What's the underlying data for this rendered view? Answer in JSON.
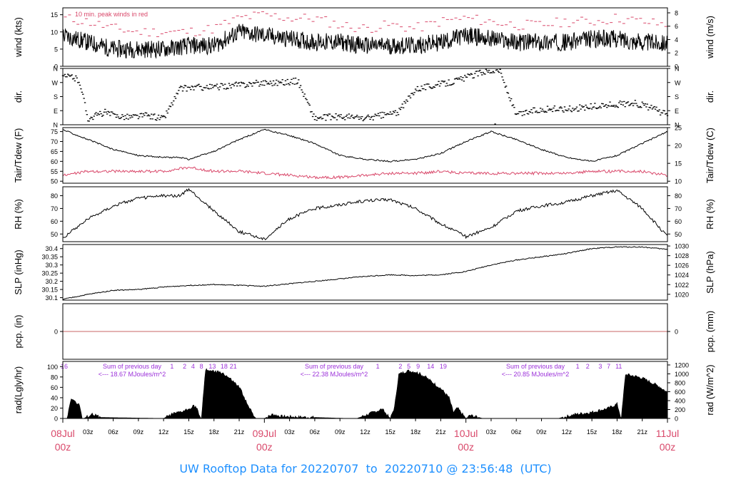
{
  "footer": {
    "prefix": "UW Rooftop Data for",
    "start": "20220707",
    "to": "to",
    "end": "20220710",
    "at": "@",
    "time": "23:56:48",
    "zone": "(UTC)"
  },
  "colors": {
    "black": "#000000",
    "red": "#d9486a",
    "purple": "#9b30d9",
    "blue": "#1e90ff",
    "date_red": "#d9486a",
    "zero_line": "#c86464"
  },
  "chart_data": {
    "type": "line",
    "x_axis": {
      "start_label": "08Jul 00z",
      "labels": [
        "08Jul",
        "03z",
        "06z",
        "09z",
        "12z",
        "15z",
        "18z",
        "21z",
        "09Jul",
        "03z",
        "06z",
        "09z",
        "12z",
        "15z",
        "18z",
        "21z",
        "10Jul",
        "03z",
        "06z",
        "09z",
        "12z",
        "15z",
        "18z",
        "21z",
        "11Jul"
      ],
      "sub_labels": [
        "00z",
        "00z",
        "00z",
        "00z"
      ],
      "day_labels": [
        "08Jul",
        "09Jul",
        "10Jul",
        "11Jul"
      ],
      "hour_ticks": [
        "03z",
        "06z",
        "09z",
        "12z",
        "15z",
        "18z",
        "21z"
      ],
      "range_hours": [
        0,
        72
      ]
    },
    "panels": [
      {
        "name": "wind",
        "ylabel_left": "wind (kts)",
        "ylabel_right": "wind (m/s)",
        "left_ticks": [
          0,
          5,
          10,
          15
        ],
        "right_ticks": [
          0,
          2,
          4,
          6,
          8
        ],
        "ylim": [
          0,
          17
        ],
        "annotation": "10 min. peak winds in red",
        "series": [
          {
            "color": "red",
            "style": "dashes",
            "x": [
              0,
              3,
              6,
              9,
              12,
              15,
              18,
              21,
              24,
              27,
              30,
              33,
              36,
              39,
              42,
              45,
              48,
              51,
              54,
              57,
              60,
              63,
              66,
              69,
              72
            ],
            "values": [
              14,
              13,
              11,
              10,
              10,
              10,
              11,
              14,
              15,
              14,
              14,
              12,
              11,
              12,
              11,
              13,
              14,
              13,
              12,
              12,
              13,
              13,
              14,
              13,
              12
            ]
          },
          {
            "color": "black",
            "style": "line",
            "x": [
              0,
              3,
              6,
              9,
              12,
              15,
              18,
              21,
              24,
              27,
              30,
              33,
              36,
              39,
              42,
              45,
              48,
              51,
              54,
              57,
              60,
              63,
              66,
              69,
              72
            ],
            "values": [
              9,
              7,
              5,
              5,
              5,
              6,
              6,
              10,
              9,
              8,
              7,
              7,
              6,
              6,
              6,
              7,
              9,
              8,
              7,
              7,
              7,
              8,
              8,
              7,
              7
            ]
          }
        ]
      },
      {
        "name": "dir",
        "ylabel_left": "dir.",
        "ylabel_right": "dir.",
        "left_ticks": [
          "N",
          "E",
          "S",
          "W",
          "N"
        ],
        "right_ticks": [
          "N",
          "E",
          "S",
          "W",
          "N"
        ],
        "ylim": [
          0,
          360
        ],
        "series": [
          {
            "color": "black",
            "style": "scatter",
            "x": [
              0,
              1,
              2,
              3,
              4,
              5,
              6,
              8,
              10,
              12,
              14,
              16,
              18,
              20,
              22,
              24,
              26,
              28,
              30,
              32,
              34,
              36,
              38,
              40,
              42,
              44,
              46,
              48,
              50,
              52,
              54,
              56,
              58,
              60,
              62,
              64,
              66,
              68,
              70,
              72
            ],
            "values": [
              300,
              310,
              280,
              40,
              60,
              80,
              60,
              50,
              60,
              40,
              230,
              240,
              240,
              250,
              260,
              270,
              270,
              280,
              40,
              50,
              50,
              40,
              60,
              80,
              230,
              250,
              270,
              300,
              340,
              350,
              60,
              90,
              100,
              100,
              110,
              120,
              130,
              140,
              110,
              60
            ]
          }
        ]
      },
      {
        "name": "temp",
        "ylabel_left": "Tair/Tdew (F)",
        "ylabel_right": "Tair/Tdew (C)",
        "left_ticks": [
          50,
          55,
          60,
          65,
          70,
          75
        ],
        "right_ticks": [
          10,
          15,
          20,
          25
        ],
        "ylim": [
          49,
          77
        ],
        "series": [
          {
            "name": "",
            "color": "black",
            "style": "line",
            "x": [
              0,
              3,
              6,
              9,
              12,
              14,
              15,
              18,
              21,
              24,
              27,
              30,
              33,
              36,
              39,
              42,
              45,
              48,
              51,
              54,
              57,
              60,
              63,
              66,
              69,
              72
            ],
            "values": [
              76,
              71,
              66,
              63,
              62,
              62,
              61,
              65,
              71,
              76,
              73,
              69,
              63,
              61,
              60,
              61,
              64,
              70,
              75,
              71,
              66,
              62,
              60,
              63,
              69,
              75
            ]
          },
          {
            "name": "",
            "color": "red",
            "style": "line",
            "x": [
              0,
              3,
              6,
              9,
              12,
              15,
              18,
              21,
              24,
              27,
              30,
              33,
              36,
              39,
              42,
              45,
              48,
              51,
              54,
              57,
              60,
              63,
              66,
              69,
              72
            ],
            "values": [
              53,
              55,
              55,
              55,
              55,
              57,
              55,
              55,
              54,
              53,
              52,
              52,
              53,
              54,
              54,
              55,
              54,
              54,
              54,
              54,
              54,
              55,
              55,
              55,
              53
            ]
          }
        ]
      },
      {
        "name": "rh",
        "ylabel_left": "RH (%)",
        "ylabel_right": "RH (%)",
        "left_ticks": [
          50,
          60,
          70,
          80
        ],
        "right_ticks": [
          50,
          60,
          70,
          80
        ],
        "ylim": [
          44,
          87
        ],
        "series": [
          {
            "color": "black",
            "style": "line",
            "x": [
              0,
              3,
              6,
              9,
              12,
              14,
              15,
              18,
              21,
              24,
              27,
              30,
              33,
              36,
              39,
              42,
              45,
              48,
              51,
              54,
              57,
              60,
              63,
              66,
              69,
              72
            ],
            "values": [
              47,
              62,
              72,
              78,
              80,
              80,
              85,
              68,
              52,
              46,
              62,
              70,
              73,
              76,
              77,
              70,
              58,
              48,
              55,
              68,
              72,
              75,
              80,
              84,
              70,
              48
            ]
          }
        ]
      },
      {
        "name": "slp",
        "ylabel_left": "SLP (inHg)",
        "ylabel_right": "SLP (hPa)",
        "left_ticks": [
          30.1,
          30.15,
          30.2,
          30.25,
          30.3,
          30.35,
          30.4
        ],
        "right_ticks": [
          1020,
          1022,
          1024,
          1026,
          1028,
          1030
        ],
        "ylim": [
          30.085,
          30.425
        ],
        "series": [
          {
            "color": "black",
            "style": "line",
            "x": [
              0,
              3,
              6,
              9,
              12,
              15,
              18,
              21,
              24,
              27,
              30,
              33,
              36,
              39,
              42,
              45,
              48,
              51,
              54,
              57,
              60,
              63,
              66,
              69,
              72
            ],
            "values": [
              30.09,
              30.12,
              30.145,
              30.15,
              30.165,
              30.175,
              30.18,
              30.175,
              30.17,
              30.185,
              30.2,
              30.215,
              30.23,
              30.24,
              30.235,
              30.24,
              30.26,
              30.3,
              30.33,
              30.35,
              30.37,
              30.4,
              30.41,
              30.41,
              30.395
            ]
          }
        ]
      },
      {
        "name": "pcp",
        "ylabel_left": "pcp. (in)",
        "ylabel_right": "pcp. (mm)",
        "left_ticks": [
          0
        ],
        "right_ticks": [
          0
        ],
        "ylim": [
          -1,
          1
        ],
        "series": [
          {
            "color": "red",
            "style": "line",
            "x": [
              0,
              72
            ],
            "values": [
              0,
              0
            ]
          }
        ]
      },
      {
        "name": "rad",
        "ylabel_left": "rad(Lgly/hr)",
        "ylabel_right": "rad (W/m^2)",
        "left_ticks": [
          0,
          20,
          40,
          60,
          80,
          100
        ],
        "right_ticks": [
          0,
          200,
          400,
          600,
          800,
          1000,
          1200
        ],
        "ylim": [
          0,
          110
        ],
        "sum_labels": [
          {
            "title": "Sum of previous day",
            "value": "<--- 18.67 MJoules/m^2"
          },
          {
            "title": "Sum of previous day",
            "value": "<--- 22.38 MJoules/m^2"
          },
          {
            "title": "Sum of previous day",
            "value": "<--- 20.85 MJoules/m^2"
          }
        ],
        "hour_marks": [
          {
            "x": 0,
            "text": "16"
          },
          {
            "x": 13,
            "text": "1"
          },
          {
            "x": 14.5,
            "text": "2"
          },
          {
            "x": 15.5,
            "text": "4"
          },
          {
            "x": 16.5,
            "text": "8"
          },
          {
            "x": 17.8,
            "text": "13"
          },
          {
            "x": 19.2,
            "text": "18"
          },
          {
            "x": 20.3,
            "text": "21"
          },
          {
            "x": 37.5,
            "text": "1"
          },
          {
            "x": 40.2,
            "text": "2"
          },
          {
            "x": 41.2,
            "text": "5"
          },
          {
            "x": 42.3,
            "text": "9"
          },
          {
            "x": 43.8,
            "text": "14"
          },
          {
            "x": 45.3,
            "text": "19"
          },
          {
            "x": 61.3,
            "text": "1"
          },
          {
            "x": 62.5,
            "text": "2"
          },
          {
            "x": 64.0,
            "text": "3"
          },
          {
            "x": 65.0,
            "text": "7"
          },
          {
            "x": 66.2,
            "text": "11"
          }
        ],
        "series": [
          {
            "color": "black",
            "style": "area",
            "x": [
              0,
              0.5,
              1,
              1.6,
              2,
              2.3,
              2.5,
              3.5,
              4.5,
              12,
              13,
              14,
              15,
              15.5,
              16,
              16.2,
              16.5,
              17,
              18,
              19,
              20,
              21,
              21.5,
              22,
              23,
              24,
              25,
              26,
              34,
              35,
              36,
              37,
              38,
              39,
              39.5,
              40,
              41,
              42,
              43,
              44,
              45,
              46,
              46.5,
              47,
              48,
              48.5,
              49,
              50,
              59,
              60,
              61,
              62,
              63,
              64,
              65,
              66,
              66.5,
              67,
              68,
              69,
              70,
              71,
              72
            ],
            "values": [
              0,
              0,
              40,
              30,
              25,
              0,
              0,
              8,
              2,
              0,
              8,
              12,
              18,
              25,
              20,
              5,
              0,
              95,
              90,
              88,
              75,
              60,
              45,
              25,
              0,
              0,
              8,
              4,
              0,
              0,
              6,
              12,
              18,
              0,
              22,
              85,
              92,
              90,
              82,
              70,
              58,
              40,
              12,
              20,
              0,
              6,
              4,
              0,
              0,
              4,
              8,
              10,
              12,
              16,
              20,
              28,
              0,
              85,
              82,
              78,
              70,
              62,
              50
            ]
          }
        ]
      }
    ]
  }
}
